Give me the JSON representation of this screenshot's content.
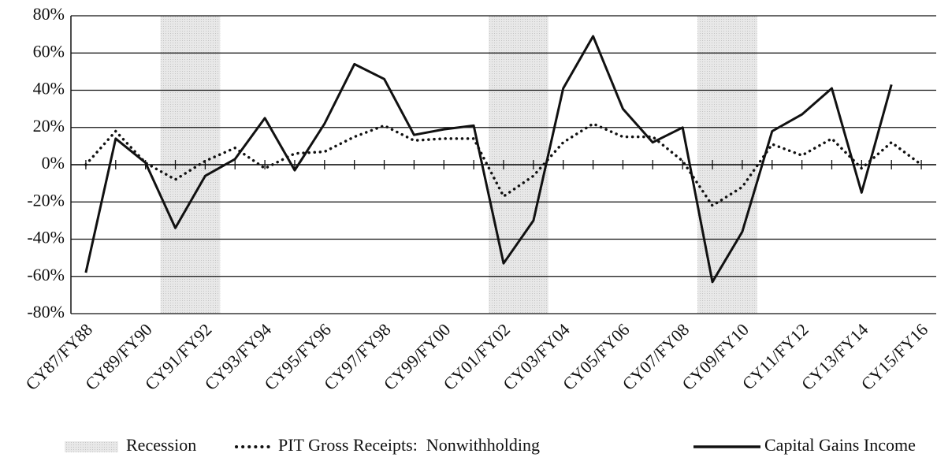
{
  "chart_data": {
    "type": "line",
    "categories": [
      "CY87/FY88",
      null,
      "CY89/FY90",
      null,
      "CY91/FY92",
      null,
      "CY93/FY94",
      null,
      "CY95/FY96",
      null,
      "CY97/FY98",
      null,
      "CY99/FY00",
      null,
      "CY01/FY02",
      null,
      "CY03/FY04",
      null,
      "CY05/FY06",
      null,
      "CY07/FY08",
      null,
      "CY09/FY10",
      null,
      "CY11/FY12",
      null,
      "CY13/FY14",
      null,
      "CY15/FY16"
    ],
    "series": [
      {
        "name": "PIT Gross Receipts:  Nonwithholding",
        "color": "#111111",
        "style": "dotted",
        "values": [
          0,
          18,
          1,
          -8,
          2,
          9,
          -2,
          6,
          7,
          15,
          21,
          13,
          14,
          14,
          -17,
          -6,
          12,
          22,
          15,
          15,
          2,
          -22,
          -12,
          11,
          5,
          14,
          -2,
          12,
          0
        ]
      },
      {
        "name": "Capital Gains Income",
        "color": "#111111",
        "style": "solid",
        "values": [
          -58,
          14,
          1,
          -34,
          -6,
          3,
          25,
          -3,
          22,
          54,
          46,
          16,
          19,
          21,
          -53,
          -30,
          41,
          69,
          30,
          12,
          20,
          -63,
          -36,
          18,
          27,
          41,
          -15,
          43,
          null
        ]
      }
    ],
    "recession_label": "Recession",
    "recession_color": "#dcdcdc",
    "recessions": [
      {
        "from": 3,
        "to": 4
      },
      {
        "from": 14,
        "to": 15
      },
      {
        "from": 21,
        "to": 22
      }
    ],
    "ylim": [
      -80,
      80
    ],
    "yticks": [
      {
        "value": -80,
        "label": "-80%"
      },
      {
        "value": -60,
        "label": "-60%"
      },
      {
        "value": -40,
        "label": "-40%"
      },
      {
        "value": -20,
        "label": "-20%"
      },
      {
        "value": 0,
        "label": "0%"
      },
      {
        "value": 20,
        "label": "20%"
      },
      {
        "value": 40,
        "label": "40%"
      },
      {
        "value": 60,
        "label": "60%"
      },
      {
        "value": 80,
        "label": "80%"
      }
    ],
    "grid": true
  }
}
